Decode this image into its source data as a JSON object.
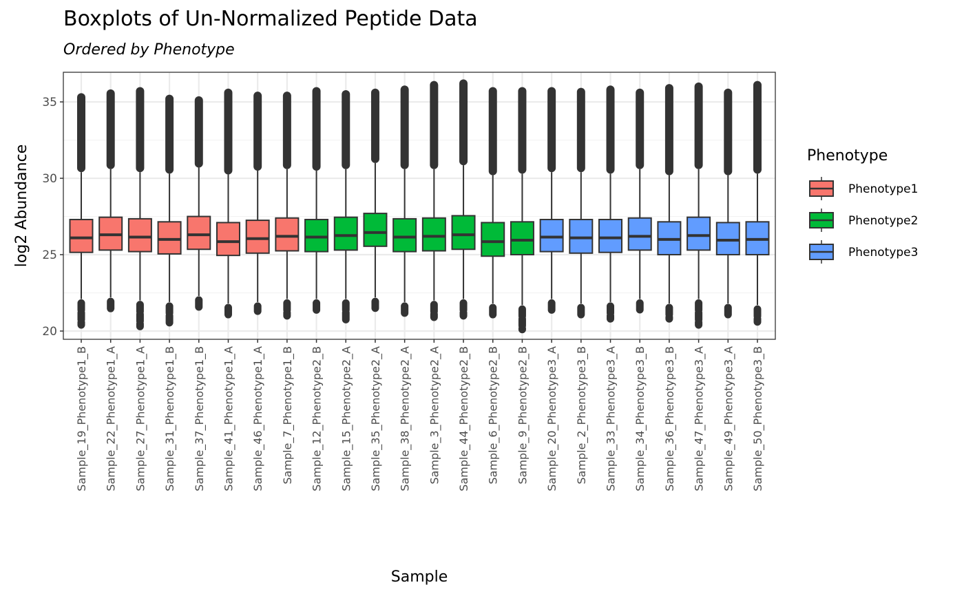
{
  "chart_data": {
    "type": "boxplot",
    "title": "Boxplots of Un-Normalized Peptide Data",
    "subtitle": "Ordered by  Phenotype",
    "xlabel": "Sample",
    "ylabel": "log2 Abundance",
    "ylim": [
      19.46,
      36.94
    ],
    "yticks": [
      20,
      25,
      30,
      35
    ],
    "grid": true,
    "legend": {
      "title": "Phenotype",
      "position": "right",
      "entries": [
        {
          "label": "Phenotype1",
          "color": "#F8766D"
        },
        {
          "label": "Phenotype2",
          "color": "#00BA38"
        },
        {
          "label": "Phenotype3",
          "color": "#619CFF"
        }
      ]
    },
    "samples": [
      {
        "name": "Sample_19_Phenotype1_B",
        "group": 0,
        "lower_whisker": 22.1,
        "q1": 25.15,
        "median": 26.1,
        "q3": 27.3,
        "upper_whisker": 30.4,
        "outliers_low_min": 20.4,
        "outliers_high_max": 35.3
      },
      {
        "name": "Sample_22_Phenotype1_A",
        "group": 0,
        "lower_whisker": 22.2,
        "q1": 25.3,
        "median": 26.3,
        "q3": 27.45,
        "upper_whisker": 30.6,
        "outliers_low_min": 21.4,
        "outliers_high_max": 35.55
      },
      {
        "name": "Sample_27_Phenotype1_A",
        "group": 0,
        "lower_whisker": 22.0,
        "q1": 25.2,
        "median": 26.15,
        "q3": 27.35,
        "upper_whisker": 30.4,
        "outliers_low_min": 20.3,
        "outliers_high_max": 35.7
      },
      {
        "name": "Sample_31_Phenotype1_B",
        "group": 0,
        "lower_whisker": 21.9,
        "q1": 25.05,
        "median": 26.0,
        "q3": 27.15,
        "upper_whisker": 30.3,
        "outliers_low_min": 20.5,
        "outliers_high_max": 35.2
      },
      {
        "name": "Sample_37_Phenotype1_B",
        "group": 0,
        "lower_whisker": 22.3,
        "q1": 25.35,
        "median": 26.3,
        "q3": 27.5,
        "upper_whisker": 30.7,
        "outliers_low_min": 21.5,
        "outliers_high_max": 35.1
      },
      {
        "name": "Sample_41_Phenotype1_A",
        "group": 0,
        "lower_whisker": 21.8,
        "q1": 24.95,
        "median": 25.85,
        "q3": 27.1,
        "upper_whisker": 30.25,
        "outliers_low_min": 20.9,
        "outliers_high_max": 35.6
      },
      {
        "name": "Sample_46_Phenotype1_A",
        "group": 0,
        "lower_whisker": 21.9,
        "q1": 25.1,
        "median": 26.05,
        "q3": 27.25,
        "upper_whisker": 30.5,
        "outliers_low_min": 21.3,
        "outliers_high_max": 35.4
      },
      {
        "name": "Sample_7_Phenotype1_B",
        "group": 0,
        "lower_whisker": 22.1,
        "q1": 25.25,
        "median": 26.2,
        "q3": 27.4,
        "upper_whisker": 30.6,
        "outliers_low_min": 21.0,
        "outliers_high_max": 35.4
      },
      {
        "name": "Sample_12_Phenotype2_B",
        "group": 1,
        "lower_whisker": 22.1,
        "q1": 25.2,
        "median": 26.15,
        "q3": 27.3,
        "upper_whisker": 30.5,
        "outliers_low_min": 21.3,
        "outliers_high_max": 35.7
      },
      {
        "name": "Sample_15_Phenotype2_A",
        "group": 1,
        "lower_whisker": 22.1,
        "q1": 25.3,
        "median": 26.25,
        "q3": 27.45,
        "upper_whisker": 30.6,
        "outliers_low_min": 20.7,
        "outliers_high_max": 35.5
      },
      {
        "name": "Sample_35_Phenotype2_A",
        "group": 1,
        "lower_whisker": 22.2,
        "q1": 25.55,
        "median": 26.45,
        "q3": 27.7,
        "upper_whisker": 31.0,
        "outliers_low_min": 21.5,
        "outliers_high_max": 35.6
      },
      {
        "name": "Sample_38_Phenotype2_A",
        "group": 1,
        "lower_whisker": 21.9,
        "q1": 25.2,
        "median": 26.15,
        "q3": 27.35,
        "upper_whisker": 30.6,
        "outliers_low_min": 21.0,
        "outliers_high_max": 35.8
      },
      {
        "name": "Sample_3_Phenotype2_A",
        "group": 1,
        "lower_whisker": 22.0,
        "q1": 25.25,
        "median": 26.2,
        "q3": 27.4,
        "upper_whisker": 30.6,
        "outliers_low_min": 20.9,
        "outliers_high_max": 36.1
      },
      {
        "name": "Sample_44_Phenotype2_B",
        "group": 1,
        "lower_whisker": 22.1,
        "q1": 25.35,
        "median": 26.3,
        "q3": 27.55,
        "upper_whisker": 30.85,
        "outliers_low_min": 21.0,
        "outliers_high_max": 36.2
      },
      {
        "name": "Sample_6_Phenotype2_B",
        "group": 1,
        "lower_whisker": 21.8,
        "q1": 24.9,
        "median": 25.85,
        "q3": 27.1,
        "upper_whisker": 30.2,
        "outliers_low_min": 20.9,
        "outliers_high_max": 35.7
      },
      {
        "name": "Sample_9_Phenotype2_B",
        "group": 1,
        "lower_whisker": 21.7,
        "q1": 25.0,
        "median": 25.95,
        "q3": 27.15,
        "upper_whisker": 30.3,
        "outliers_low_min": 20.1,
        "outliers_high_max": 35.7
      },
      {
        "name": "Sample_20_Phenotype3_A",
        "group": 2,
        "lower_whisker": 22.1,
        "q1": 25.2,
        "median": 26.15,
        "q3": 27.3,
        "upper_whisker": 30.4,
        "outliers_low_min": 21.3,
        "outliers_high_max": 35.7
      },
      {
        "name": "Sample_2_Phenotype3_B",
        "group": 2,
        "lower_whisker": 21.8,
        "q1": 25.1,
        "median": 26.1,
        "q3": 27.3,
        "upper_whisker": 30.4,
        "outliers_low_min": 20.9,
        "outliers_high_max": 35.65
      },
      {
        "name": "Sample_33_Phenotype3_A",
        "group": 2,
        "lower_whisker": 21.9,
        "q1": 25.15,
        "median": 26.1,
        "q3": 27.3,
        "upper_whisker": 30.3,
        "outliers_low_min": 20.8,
        "outliers_high_max": 35.8
      },
      {
        "name": "Sample_34_Phenotype3_B",
        "group": 2,
        "lower_whisker": 22.1,
        "q1": 25.3,
        "median": 26.2,
        "q3": 27.4,
        "upper_whisker": 30.6,
        "outliers_low_min": 21.4,
        "outliers_high_max": 35.6
      },
      {
        "name": "Sample_36_Phenotype3_B",
        "group": 2,
        "lower_whisker": 21.8,
        "q1": 25.0,
        "median": 26.0,
        "q3": 27.15,
        "upper_whisker": 30.2,
        "outliers_low_min": 20.8,
        "outliers_high_max": 35.9
      },
      {
        "name": "Sample_47_Phenotype3_A",
        "group": 2,
        "lower_whisker": 22.1,
        "q1": 25.3,
        "median": 26.25,
        "q3": 27.45,
        "upper_whisker": 30.6,
        "outliers_low_min": 20.4,
        "outliers_high_max": 36.0
      },
      {
        "name": "Sample_49_Phenotype3_A",
        "group": 2,
        "lower_whisker": 21.8,
        "q1": 25.0,
        "median": 25.95,
        "q3": 27.1,
        "upper_whisker": 30.2,
        "outliers_low_min": 21.0,
        "outliers_high_max": 35.6
      },
      {
        "name": "Sample_50_Phenotype3_B",
        "group": 2,
        "lower_whisker": 21.7,
        "q1": 25.0,
        "median": 26.0,
        "q3": 27.15,
        "upper_whisker": 30.3,
        "outliers_low_min": 20.6,
        "outliers_high_max": 36.1
      }
    ]
  }
}
